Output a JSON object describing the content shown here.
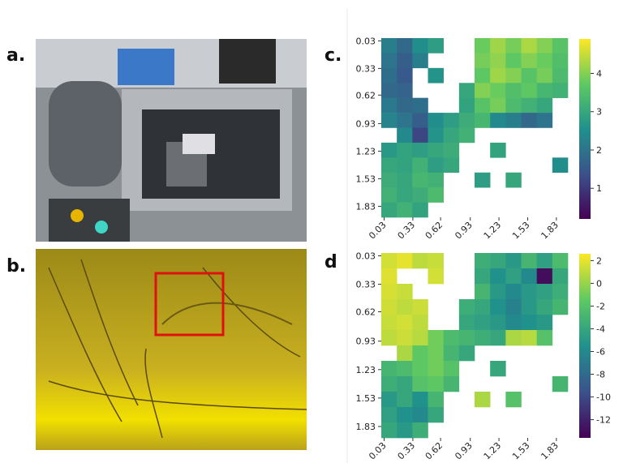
{
  "panel_labels": [
    "a.",
    "b.",
    "c.",
    "d"
  ],
  "chart_data": [
    {
      "type": "heatmap",
      "colormap": "viridis",
      "y_inverted": true,
      "xlim": [
        0,
        1.95
      ],
      "ylim": [
        0,
        1.95
      ],
      "xticks": [
        0.03,
        0.33,
        0.62,
        0.93,
        1.23,
        1.53,
        1.83
      ],
      "yticks": [
        0.03,
        0.33,
        0.62,
        0.93,
        1.23,
        1.53,
        1.83
      ],
      "zlim": [
        0.2,
        4.9
      ],
      "colorbar_ticks": [
        1,
        2,
        3,
        4
      ],
      "values": [
        [
          2.2,
          1.8,
          2.5,
          2.8,
          null,
          null,
          3.8,
          4.2,
          3.9,
          4.3,
          4.0,
          3.6
        ],
        [
          2.0,
          1.6,
          2.2,
          null,
          null,
          null,
          3.9,
          4.1,
          3.7,
          4.0,
          3.8,
          3.5
        ],
        [
          1.9,
          1.5,
          null,
          2.6,
          null,
          null,
          3.7,
          4.2,
          4.0,
          3.6,
          3.9,
          3.4
        ],
        [
          1.8,
          1.7,
          null,
          null,
          null,
          3.0,
          4.0,
          3.8,
          3.5,
          3.7,
          3.3,
          3.2
        ],
        [
          2.1,
          1.8,
          1.9,
          null,
          null,
          2.9,
          3.6,
          3.9,
          3.4,
          3.2,
          3.0,
          null
        ],
        [
          2.3,
          2.0,
          1.6,
          2.5,
          2.8,
          3.1,
          3.3,
          2.4,
          2.2,
          1.8,
          2.0,
          null
        ],
        [
          null,
          2.4,
          1.2,
          2.6,
          3.0,
          3.2,
          null,
          null,
          null,
          null,
          null,
          null
        ],
        [
          2.7,
          2.9,
          2.8,
          3.0,
          3.1,
          null,
          null,
          2.9,
          null,
          null,
          null,
          null
        ],
        [
          3.0,
          2.9,
          3.2,
          2.8,
          3.0,
          null,
          null,
          null,
          null,
          null,
          null,
          2.5
        ],
        [
          3.1,
          3.0,
          3.3,
          3.2,
          null,
          null,
          2.8,
          null,
          3.0,
          null,
          null,
          null
        ],
        [
          3.2,
          3.0,
          3.1,
          3.4,
          null,
          null,
          null,
          null,
          null,
          null,
          null,
          null
        ],
        [
          3.0,
          3.2,
          2.9,
          null,
          null,
          null,
          null,
          null,
          null,
          null,
          null,
          null
        ]
      ]
    },
    {
      "type": "heatmap",
      "colormap": "viridis",
      "y_inverted": true,
      "xlim": [
        0,
        1.95
      ],
      "ylim": [
        0,
        1.95
      ],
      "xticks": [
        0.03,
        0.33,
        0.62,
        0.93,
        1.23,
        1.53,
        1.83
      ],
      "yticks": [
        0.03,
        0.33,
        0.62,
        0.93,
        1.23,
        1.53,
        1.83
      ],
      "zlim": [
        -13.6,
        2.6
      ],
      "colorbar_ticks": [
        2,
        0,
        -2,
        -4,
        -6,
        -8,
        -10,
        -12
      ],
      "values": [
        [
          1.5,
          2.0,
          1.0,
          1.2,
          null,
          null,
          -3.5,
          -4.0,
          -5.0,
          -3.0,
          -4.5,
          -2.5
        ],
        [
          1.8,
          null,
          null,
          1.5,
          null,
          null,
          -4.0,
          -5.5,
          -4.5,
          -6.0,
          -13.0,
          -4.0
        ],
        [
          1.6,
          1.2,
          null,
          null,
          null,
          null,
          -3.0,
          -5.0,
          -6.0,
          -5.0,
          -4.5,
          -3.5
        ],
        [
          1.4,
          1.0,
          1.3,
          null,
          null,
          -3.5,
          -4.0,
          -5.5,
          -6.5,
          -5.0,
          -4.0,
          -3.0
        ],
        [
          1.2,
          1.5,
          1.0,
          null,
          null,
          -4.0,
          -4.5,
          -5.0,
          -6.0,
          -5.5,
          -5.0,
          null
        ],
        [
          1.0,
          1.3,
          0.8,
          -1.0,
          -2.5,
          -3.0,
          -3.5,
          -4.0,
          0.5,
          0.8,
          -2.0,
          null
        ],
        [
          null,
          0.5,
          -1.5,
          -1.0,
          -3.0,
          -4.0,
          null,
          null,
          null,
          null,
          null,
          null
        ],
        [
          -3.0,
          -2.5,
          -1.5,
          -1.0,
          -2.0,
          null,
          null,
          -4.0,
          null,
          null,
          null,
          null
        ],
        [
          -3.5,
          -4.0,
          -2.0,
          -1.5,
          -3.0,
          null,
          null,
          null,
          null,
          null,
          null,
          -3.0
        ],
        [
          -5.0,
          -4.0,
          -5.5,
          -3.0,
          null,
          null,
          0.5,
          null,
          -2.0,
          null,
          null,
          null
        ],
        [
          -4.5,
          -5.5,
          -6.0,
          -4.0,
          null,
          null,
          null,
          null,
          null,
          null,
          null,
          null
        ],
        [
          -4.0,
          -5.0,
          -3.5,
          null,
          null,
          null,
          null,
          null,
          null,
          null,
          null,
          null
        ]
      ]
    }
  ]
}
